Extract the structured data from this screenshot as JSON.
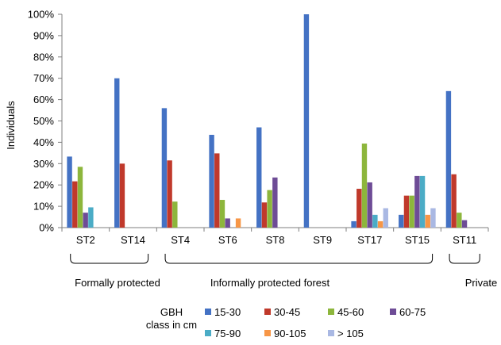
{
  "chart_data": {
    "type": "bar",
    "ylabel": "Individuals",
    "ylim": [
      0,
      100
    ],
    "yticks": [
      "0%",
      "10%",
      "20%",
      "30%",
      "40%",
      "50%",
      "60%",
      "70%",
      "80%",
      "90%",
      "100%"
    ],
    "categories": [
      "ST2",
      "ST14",
      "ST4",
      "ST6",
      "ST8",
      "ST9",
      "ST17",
      "ST15",
      "ST11"
    ],
    "series": [
      {
        "name": "15-30",
        "color": "#4472C4",
        "values": [
          33.3,
          70,
          56,
          43.5,
          47,
          100,
          3,
          6,
          64
        ]
      },
      {
        "name": "30-45",
        "color": "#C0392B",
        "values": [
          21.7,
          30,
          31.5,
          34.8,
          11.8,
          0,
          18.2,
          15,
          25
        ]
      },
      {
        "name": "45-60",
        "color": "#8DB63C",
        "values": [
          28.5,
          0,
          12.2,
          13,
          17.6,
          0,
          39.4,
          15,
          7
        ]
      },
      {
        "name": "60-75",
        "color": "#6E4C96",
        "values": [
          7,
          0,
          0,
          4.3,
          23.5,
          0,
          21.2,
          24.2,
          3.5
        ]
      },
      {
        "name": "75-90",
        "color": "#4BACC6",
        "values": [
          9.5,
          0,
          0,
          0,
          0,
          0,
          6,
          24.2,
          0
        ]
      },
      {
        "name": "90-105",
        "color": "#F79646",
        "values": [
          0,
          0,
          0,
          4.3,
          0,
          0,
          3,
          6,
          0
        ]
      },
      {
        "name": "> 105",
        "color": "#A9B8E3",
        "values": [
          0,
          0,
          0,
          0,
          0,
          0,
          9.1,
          9.1,
          0
        ]
      }
    ],
    "groups": [
      {
        "label": "Formally protected",
        "from": 0,
        "to": 1
      },
      {
        "label": "Informally protected forest",
        "from": 2,
        "to": 7
      },
      {
        "label": "Private",
        "from": 8,
        "to": 8
      }
    ],
    "legend": {
      "title_line1": "GBH",
      "title_line2": "class  in cm",
      "placement": "bottom"
    },
    "grid": false
  }
}
